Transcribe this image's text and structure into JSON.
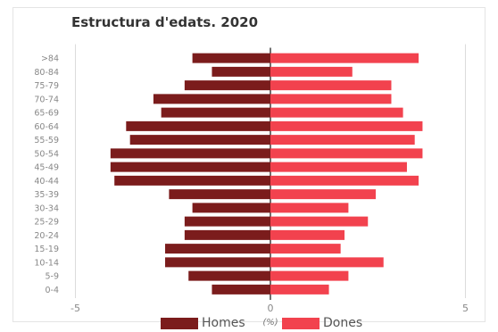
{
  "chart_data": {
    "type": "bar",
    "title": "Estructura d'edats. 2020",
    "xlabel": "(%)",
    "ylabel": "",
    "categories": [
      ">84",
      "80-84",
      "75-79",
      "70-74",
      "65-69",
      "60-64",
      "55-59",
      "50-54",
      "45-49",
      "40-44",
      "35-39",
      "30-34",
      "25-29",
      "20-24",
      "15-19",
      "10-14",
      "5-9",
      "0-4"
    ],
    "series": [
      {
        "name": "Homes",
        "color": "#7b1c1c",
        "values": [
          -2.0,
          -1.5,
          -2.2,
          -3.0,
          -2.8,
          -3.7,
          -3.6,
          -4.1,
          -4.1,
          -4.0,
          -2.6,
          -2.0,
          -2.2,
          -2.2,
          -2.7,
          -2.7,
          -2.1,
          -1.5
        ]
      },
      {
        "name": "Dones",
        "color": "#f2424e",
        "values": [
          3.8,
          2.1,
          3.1,
          3.1,
          3.4,
          3.9,
          3.7,
          3.9,
          3.5,
          3.8,
          2.7,
          2.0,
          2.5,
          1.9,
          1.8,
          2.9,
          2.0,
          1.5
        ]
      }
    ],
    "xlim": [
      -5,
      5
    ],
    "xticks": [
      "-5",
      "0",
      "5"
    ],
    "grid": true,
    "legend_position": "bottom"
  }
}
